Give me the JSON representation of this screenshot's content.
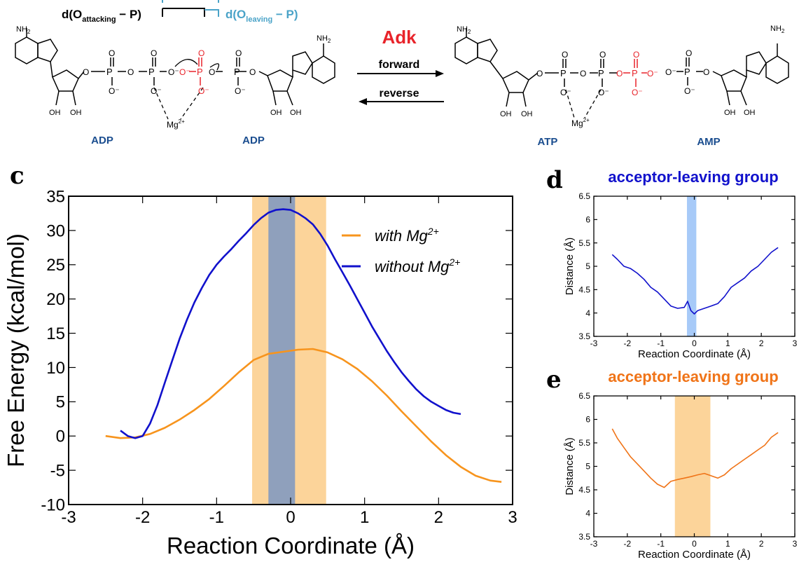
{
  "scheme": {
    "distance_left": "d(O",
    "distance_left_sub": "attacking",
    "distance_left_tail": " − P)",
    "distance_right": "d(O",
    "distance_right_sub": "leaving",
    "distance_right_tail": " − P)",
    "enzyme_label": "Adk",
    "forward_label": "forward",
    "reverse_label": "reverse",
    "molecules": [
      "ADP",
      "ADP",
      "ATP",
      "AMP"
    ],
    "mg_label": "Mg",
    "mg_charge": "2+",
    "nh2": "NH",
    "nh2_sub": "2",
    "oh": "OH",
    "colors": {
      "blue_label": "#1a4d8f",
      "red": "#e8232a",
      "cyan": "#4aa3c8"
    }
  },
  "panel_c": {
    "letter": "c",
    "colors": {
      "with": "#f7941d",
      "without": "#1111cc",
      "band_orange": "#fcd49a",
      "band_gray": "#8fa0bc"
    }
  },
  "panel_d": {
    "letter": "d",
    "color": "#1111cc",
    "band_color": "#8ab8f5"
  },
  "panel_e": {
    "letter": "e",
    "color": "#f07418",
    "band_color": "#fcd49a"
  },
  "chart_data": [
    {
      "type": "line",
      "panel": "c",
      "title": "",
      "xlabel": "Reaction Coordinate (Å)",
      "ylabel": "Free Energy (kcal/mol)",
      "xlim": [
        -3,
        3
      ],
      "ylim": [
        -10,
        35
      ],
      "xticks": [
        "-3",
        "-2",
        "-1",
        "0",
        "1",
        "2",
        "3"
      ],
      "yticks": [
        "-10",
        "-5",
        "0",
        "5",
        "10",
        "15",
        "20",
        "25",
        "30",
        "35"
      ],
      "legend_position": "top-right",
      "shaded_regions": [
        {
          "x": [
            -0.52,
            0.48
          ],
          "color": "orange"
        },
        {
          "x": [
            -0.3,
            0.06
          ],
          "color": "gray"
        }
      ],
      "series": [
        {
          "name": "with Mg",
          "name_sup": "2+",
          "x": [
            -2.5,
            -2.3,
            -2.1,
            -1.9,
            -1.7,
            -1.5,
            -1.3,
            -1.1,
            -0.9,
            -0.7,
            -0.5,
            -0.3,
            -0.1,
            0.1,
            0.3,
            0.5,
            0.7,
            0.9,
            1.1,
            1.3,
            1.5,
            1.7,
            1.9,
            2.1,
            2.3,
            2.5,
            2.7,
            2.85
          ],
          "y": [
            0,
            -0.3,
            -0.2,
            0.3,
            1.2,
            2.4,
            3.8,
            5.4,
            7.3,
            9.3,
            11.1,
            12.0,
            12.3,
            12.6,
            12.7,
            12.2,
            11.2,
            9.8,
            8.0,
            5.9,
            3.6,
            1.4,
            -0.8,
            -2.8,
            -4.5,
            -5.8,
            -6.5,
            -6.7
          ]
        },
        {
          "name": "without Mg",
          "name_sup": "2+",
          "x": [
            -2.3,
            -2.2,
            -2.1,
            -2.0,
            -1.9,
            -1.8,
            -1.7,
            -1.6,
            -1.5,
            -1.4,
            -1.3,
            -1.2,
            -1.1,
            -1.0,
            -0.9,
            -0.8,
            -0.7,
            -0.6,
            -0.5,
            -0.4,
            -0.3,
            -0.2,
            -0.1,
            0.0,
            0.1,
            0.2,
            0.3,
            0.4,
            0.5,
            0.6,
            0.7,
            0.8,
            0.9,
            1.0,
            1.1,
            1.2,
            1.3,
            1.4,
            1.5,
            1.6,
            1.7,
            1.8,
            1.9,
            2.0,
            2.1,
            2.2,
            2.3
          ],
          "y": [
            0.8,
            0.0,
            -0.3,
            0.0,
            1.8,
            4.5,
            7.8,
            11.0,
            14.2,
            17.0,
            19.5,
            21.6,
            23.5,
            25.0,
            26.2,
            27.3,
            28.5,
            29.6,
            30.8,
            31.8,
            32.6,
            33.0,
            33.1,
            33.0,
            32.5,
            31.8,
            30.9,
            29.5,
            27.8,
            25.8,
            23.9,
            22.0,
            20.0,
            18.0,
            16.0,
            14.2,
            12.4,
            10.8,
            9.3,
            8.0,
            6.8,
            5.8,
            5.0,
            4.4,
            3.8,
            3.4,
            3.2
          ]
        }
      ]
    },
    {
      "type": "line",
      "panel": "d",
      "title": "acceptor-leaving group",
      "xlabel": "Reaction Coordinate (Å)",
      "ylabel": "Distance (Å)",
      "xlim": [
        -3,
        3
      ],
      "ylim": [
        3.5,
        6.5
      ],
      "xticks": [
        "-3",
        "-2",
        "-1",
        "0",
        "1",
        "2",
        "3"
      ],
      "yticks": [
        "3.5",
        "4",
        "4.5",
        "5",
        "5.5",
        "6",
        "6.5"
      ],
      "shaded_regions": [
        {
          "x": [
            -0.22,
            0.06
          ]
        }
      ],
      "series": [
        {
          "name": "",
          "x": [
            -2.45,
            -2.3,
            -2.1,
            -1.9,
            -1.7,
            -1.5,
            -1.3,
            -1.1,
            -0.9,
            -0.7,
            -0.5,
            -0.3,
            -0.2,
            -0.1,
            0.0,
            0.1,
            0.3,
            0.5,
            0.7,
            0.9,
            1.1,
            1.3,
            1.5,
            1.7,
            1.9,
            2.1,
            2.3,
            2.5
          ],
          "y": [
            5.25,
            5.15,
            5.0,
            4.95,
            4.85,
            4.72,
            4.55,
            4.45,
            4.3,
            4.15,
            4.1,
            4.12,
            4.25,
            4.05,
            3.98,
            4.05,
            4.1,
            4.15,
            4.2,
            4.35,
            4.55,
            4.65,
            4.75,
            4.9,
            5.0,
            5.15,
            5.3,
            5.4
          ]
        }
      ]
    },
    {
      "type": "line",
      "panel": "e",
      "title": "acceptor-leaving group",
      "xlabel": "Reaction Coordinate (Å)",
      "ylabel": "Distance (Å)",
      "xlim": [
        -3,
        3
      ],
      "ylim": [
        3.5,
        6.5
      ],
      "xticks": [
        "-3",
        "-2",
        "-1",
        "0",
        "1",
        "2",
        "3"
      ],
      "yticks": [
        "3.5",
        "4",
        "4.5",
        "5",
        "5.5",
        "6",
        "6.5"
      ],
      "shaded_regions": [
        {
          "x": [
            -0.58,
            0.48
          ]
        }
      ],
      "series": [
        {
          "name": "",
          "x": [
            -2.45,
            -2.3,
            -2.1,
            -1.9,
            -1.7,
            -1.5,
            -1.3,
            -1.1,
            -0.9,
            -0.7,
            -0.5,
            -0.3,
            -0.1,
            0.1,
            0.3,
            0.5,
            0.7,
            0.9,
            1.1,
            1.3,
            1.5,
            1.7,
            1.9,
            2.1,
            2.3,
            2.5
          ],
          "y": [
            5.8,
            5.6,
            5.4,
            5.2,
            5.05,
            4.9,
            4.75,
            4.62,
            4.55,
            4.68,
            4.72,
            4.75,
            4.78,
            4.82,
            4.85,
            4.8,
            4.75,
            4.82,
            4.95,
            5.05,
            5.15,
            5.25,
            5.35,
            5.45,
            5.62,
            5.72
          ]
        }
      ]
    }
  ]
}
